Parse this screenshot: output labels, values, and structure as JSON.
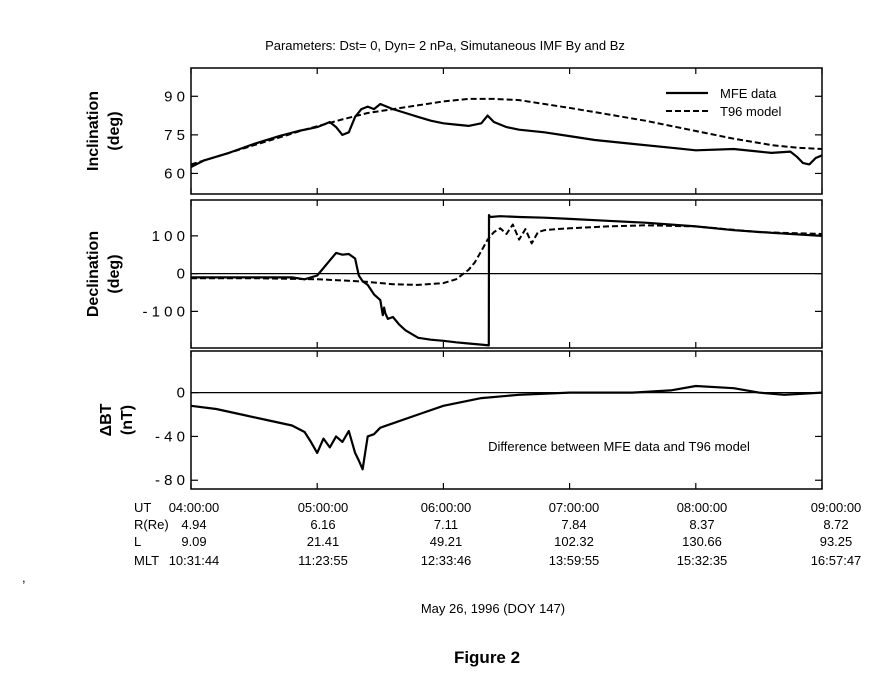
{
  "figure": {
    "header": "Parameters:  Dst= 0, Dyn= 2 nPa, Simutaneous IMF By and Bz",
    "date_label": "May 26, 1996 (DOY 147)",
    "caption": "Figure 2",
    "annotation": "Difference between MFE data and T96 model"
  },
  "legend": [
    {
      "label": "MFE data",
      "style": "solid"
    },
    {
      "label": "T96 model",
      "style": "dashed"
    }
  ],
  "orbit_table": {
    "rows": [
      {
        "label": "UT",
        "values": [
          "04:00:00",
          "05:00:00",
          "06:00:00",
          "07:00:00",
          "08:00:00",
          "09:00:00"
        ]
      },
      {
        "label": "R(Re)",
        "values": [
          "4.94",
          "6.16",
          "7.11",
          "7.84",
          "8.37",
          "8.72"
        ]
      },
      {
        "label": "L",
        "values": [
          "9.09",
          "21.41",
          "49.21",
          "102.32",
          "130.66",
          "93.25"
        ]
      },
      {
        "label": "MLT",
        "values": [
          "10:31:44",
          "11:23:55",
          "12:33:46",
          "13:59:55",
          "15:32:35",
          "16:57:47"
        ]
      }
    ]
  },
  "chart_data": [
    {
      "type": "line",
      "ylabel": "Inclination\n(deg)",
      "x_unit": "UT hour",
      "xlim": [
        4,
        9
      ],
      "ylim": [
        52,
        101
      ],
      "yticks": [
        {
          "value": 90,
          "label": "9 0"
        },
        {
          "value": 75,
          "label": "7 5"
        },
        {
          "value": 60,
          "label": "6 0"
        }
      ],
      "zero_line": false,
      "series": [
        {
          "name": "MFE data",
          "style": "solid",
          "x": [
            4.0,
            4.1,
            4.3,
            4.5,
            4.7,
            4.85,
            4.95,
            5.0,
            5.05,
            5.1,
            5.15,
            5.2,
            5.25,
            5.3,
            5.35,
            5.4,
            5.45,
            5.5,
            5.6,
            5.7,
            5.8,
            5.9,
            6.0,
            6.1,
            6.2,
            6.3,
            6.35,
            6.4,
            6.5,
            6.6,
            6.8,
            7.0,
            7.2,
            7.5,
            7.8,
            8.0,
            8.3,
            8.6,
            8.75,
            8.8,
            8.85,
            8.9,
            8.95,
            9.0
          ],
          "y": [
            62.5,
            65,
            68,
            71.5,
            74.5,
            76.5,
            77.5,
            78,
            79,
            80,
            78,
            75,
            76,
            82,
            85,
            86,
            85,
            87,
            85,
            83.5,
            82,
            80.5,
            79.5,
            79,
            78.5,
            79.5,
            82.5,
            80,
            78,
            77,
            76,
            74.5,
            73,
            71.5,
            70,
            69,
            69.5,
            68,
            68.5,
            66.5,
            64,
            63.5,
            66,
            67
          ]
        },
        {
          "name": "T96 model",
          "style": "dashed",
          "x": [
            4.0,
            4.3,
            4.6,
            4.9,
            5.2,
            5.4,
            5.6,
            5.8,
            6.0,
            6.2,
            6.4,
            6.6,
            6.8,
            7.0,
            7.3,
            7.6,
            8.0,
            8.3,
            8.6,
            8.8,
            9.0
          ],
          "y": [
            63.5,
            68,
            72.5,
            77,
            81,
            83.5,
            85,
            86.5,
            88,
            89,
            89,
            88.5,
            87,
            85.5,
            83,
            80.5,
            76.5,
            73.5,
            71,
            70,
            69.5
          ]
        }
      ]
    },
    {
      "type": "line",
      "ylabel": "Declination\n(deg)",
      "x_unit": "UT hour",
      "xlim": [
        4,
        9
      ],
      "ylim": [
        -197,
        195
      ],
      "yticks": [
        {
          "value": 100,
          "label": "1 0 0"
        },
        {
          "value": 0,
          "label": "0"
        },
        {
          "value": -100,
          "label": "- 1 0 0"
        }
      ],
      "zero_line": true,
      "series": [
        {
          "name": "MFE data",
          "style": "solid",
          "x": [
            4.0,
            4.5,
            4.8,
            4.9,
            5.0,
            5.05,
            5.1,
            5.15,
            5.2,
            5.25,
            5.3,
            5.33,
            5.36,
            5.4,
            5.45,
            5.5,
            5.52,
            5.53,
            5.54,
            5.56,
            5.6,
            5.65,
            5.7,
            5.8,
            5.9,
            6.0,
            6.1,
            6.2,
            6.3,
            6.36,
            6.361,
            6.37,
            6.45,
            6.6,
            6.8,
            7.0,
            7.3,
            7.6,
            8.0,
            8.3,
            8.6,
            9.0
          ],
          "y": [
            -10,
            -10,
            -10,
            -15,
            -5,
            15,
            35,
            55,
            50,
            52,
            40,
            -5,
            -20,
            -30,
            -55,
            -70,
            -110,
            -90,
            -105,
            -120,
            -115,
            -135,
            -150,
            -170,
            -175,
            -178,
            -182,
            -185,
            -188,
            -190,
            155,
            150,
            152,
            150,
            148,
            145,
            140,
            135,
            125,
            115,
            108,
            100
          ]
        },
        {
          "name": "T96 model",
          "style": "dashed",
          "x": [
            4.0,
            4.5,
            5.0,
            5.2,
            5.4,
            5.6,
            5.8,
            6.0,
            6.1,
            6.2,
            6.25,
            6.3,
            6.35,
            6.4,
            6.45,
            6.5,
            6.55,
            6.6,
            6.65,
            6.7,
            6.75,
            6.8,
            6.9,
            7.0,
            7.3,
            7.6,
            8.0,
            8.5,
            9.0
          ],
          "y": [
            -12,
            -12,
            -15,
            -18,
            -22,
            -28,
            -30,
            -25,
            -15,
            10,
            30,
            60,
            90,
            110,
            120,
            105,
            130,
            90,
            118,
            80,
            110,
            115,
            118,
            120,
            125,
            128,
            125,
            110,
            105
          ]
        }
      ]
    },
    {
      "type": "line",
      "ylabel": "ΔBT\n(nT)",
      "x_unit": "UT hour",
      "xlim": [
        4,
        9
      ],
      "ylim": [
        -88,
        38
      ],
      "yticks": [
        {
          "value": 0,
          "label": "0"
        },
        {
          "value": -40,
          "label": "- 4 0"
        },
        {
          "value": -80,
          "label": "- 8 0"
        }
      ],
      "zero_line": true,
      "series": [
        {
          "name": "MFE data",
          "style": "solid",
          "x": [
            4.0,
            4.2,
            4.4,
            4.6,
            4.8,
            4.9,
            4.95,
            5.0,
            5.05,
            5.1,
            5.15,
            5.2,
            5.25,
            5.3,
            5.33,
            5.36,
            5.4,
            5.45,
            5.5,
            5.6,
            5.8,
            6.0,
            6.3,
            6.6,
            7.0,
            7.5,
            7.8,
            8.0,
            8.3,
            8.5,
            8.7,
            9.0
          ],
          "y": [
            -12,
            -15,
            -20,
            -25,
            -30,
            -36,
            -45,
            -55,
            -42,
            -50,
            -40,
            -45,
            -35,
            -55,
            -62,
            -70,
            -40,
            -38,
            -32,
            -28,
            -20,
            -12,
            -5,
            -2,
            0,
            0,
            2,
            6,
            4,
            0,
            -2,
            0
          ]
        }
      ]
    }
  ]
}
